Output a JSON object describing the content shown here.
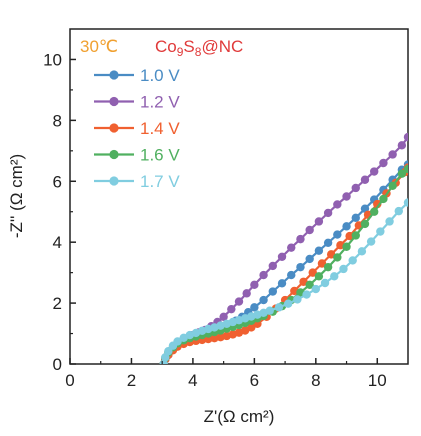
{
  "chart_data": {
    "type": "line",
    "xlabel": "Z'(Ω cm²)",
    "ylabel": "-Z'' (Ω cm²)",
    "xlim": [
      0,
      11
    ],
    "ylim": [
      0,
      11
    ],
    "x_ticks": [
      "0",
      "2",
      "4",
      "6",
      "8",
      "10"
    ],
    "y_ticks": [
      "0",
      "2",
      "4",
      "6",
      "8",
      "10"
    ],
    "grid": false,
    "legend_position": "top-left",
    "annotations": {
      "temperature": "30℃",
      "temperature_color": "#f0a030",
      "material": "Co9S8@NC",
      "material_color": "#e03a3a"
    },
    "series": [
      {
        "name": "1.0 V",
        "color": "#4a8cc4",
        "x": [
          3.05,
          3.1,
          3.2,
          3.3,
          3.45,
          3.6,
          3.8,
          4.0,
          4.2,
          4.4,
          4.6,
          4.8,
          5.0,
          5.2,
          5.4,
          5.6,
          5.8,
          6.0,
          6.3,
          6.6,
          6.9,
          7.2,
          7.5,
          7.8,
          8.1,
          8.4,
          8.7,
          9.0,
          9.3,
          9.6,
          9.9,
          10.2,
          10.5,
          10.8,
          11.0
        ],
        "y": [
          0.0,
          0.15,
          0.3,
          0.45,
          0.6,
          0.72,
          0.82,
          0.9,
          0.95,
          1.0,
          1.05,
          1.12,
          1.2,
          1.3,
          1.42,
          1.55,
          1.7,
          1.86,
          2.1,
          2.38,
          2.65,
          2.92,
          3.18,
          3.45,
          3.72,
          3.98,
          4.25,
          4.52,
          4.8,
          5.1,
          5.4,
          5.72,
          6.05,
          6.38,
          6.55
        ]
      },
      {
        "name": "1.2 V",
        "color": "#9060b0",
        "x": [
          3.05,
          3.1,
          3.2,
          3.3,
          3.45,
          3.6,
          3.8,
          4.0,
          4.2,
          4.4,
          4.6,
          4.8,
          5.0,
          5.25,
          5.5,
          5.75,
          6.0,
          6.3,
          6.6,
          6.9,
          7.2,
          7.5,
          7.8,
          8.1,
          8.4,
          8.7,
          9.0,
          9.3,
          9.6,
          9.9,
          10.2,
          10.5,
          10.8,
          11.0
        ],
        "y": [
          0.0,
          0.15,
          0.3,
          0.45,
          0.6,
          0.72,
          0.84,
          0.95,
          1.04,
          1.12,
          1.24,
          1.38,
          1.55,
          1.8,
          2.05,
          2.32,
          2.6,
          2.92,
          3.22,
          3.52,
          3.82,
          4.1,
          4.4,
          4.68,
          4.96,
          5.24,
          5.5,
          5.78,
          6.05,
          6.32,
          6.6,
          6.88,
          7.18,
          7.45
        ]
      },
      {
        "name": "1.4 V",
        "color": "#f06030",
        "x": [
          3.05,
          3.1,
          3.2,
          3.35,
          3.5,
          3.7,
          3.9,
          4.1,
          4.3,
          4.5,
          4.7,
          4.9,
          5.1,
          5.3,
          5.5,
          5.7,
          5.9,
          6.1,
          6.4,
          6.7,
          7.0,
          7.3,
          7.6,
          7.9,
          8.2,
          8.5,
          8.8,
          9.1,
          9.4,
          9.7,
          10.0,
          10.3,
          10.6,
          10.9,
          11.0
        ],
        "y": [
          0.0,
          0.15,
          0.3,
          0.45,
          0.57,
          0.66,
          0.72,
          0.76,
          0.79,
          0.82,
          0.85,
          0.88,
          0.92,
          0.97,
          1.03,
          1.1,
          1.2,
          1.32,
          1.55,
          1.82,
          2.1,
          2.4,
          2.7,
          3.0,
          3.3,
          3.6,
          3.9,
          4.2,
          4.55,
          4.9,
          5.25,
          5.6,
          5.95,
          6.3,
          6.45
        ]
      },
      {
        "name": "1.6 V",
        "color": "#50b060",
        "x": [
          3.05,
          3.1,
          3.2,
          3.35,
          3.5,
          3.7,
          3.9,
          4.1,
          4.3,
          4.5,
          4.7,
          4.9,
          5.1,
          5.3,
          5.5,
          5.7,
          5.9,
          6.1,
          6.3,
          6.6,
          6.9,
          7.2,
          7.5,
          7.8,
          8.1,
          8.4,
          8.7,
          9.0,
          9.3,
          9.6,
          9.9,
          10.2,
          10.5,
          10.8,
          11.0
        ],
        "y": [
          0.0,
          0.2,
          0.38,
          0.55,
          0.68,
          0.78,
          0.85,
          0.9,
          0.95,
          1.0,
          1.05,
          1.1,
          1.16,
          1.22,
          1.28,
          1.35,
          1.42,
          1.5,
          1.58,
          1.72,
          1.9,
          2.1,
          2.35,
          2.6,
          2.88,
          3.18,
          3.5,
          3.85,
          4.22,
          4.6,
          5.0,
          5.42,
          5.85,
          6.25,
          6.4
        ]
      },
      {
        "name": "1.7 V",
        "color": "#80cde0",
        "x": [
          3.05,
          3.1,
          3.2,
          3.35,
          3.5,
          3.7,
          3.9,
          4.1,
          4.3,
          4.5,
          4.7,
          4.9,
          5.1,
          5.3,
          5.5,
          5.7,
          5.9,
          6.1,
          6.3,
          6.5,
          6.8,
          7.1,
          7.4,
          7.7,
          8.0,
          8.3,
          8.6,
          8.9,
          9.2,
          9.5,
          9.8,
          10.1,
          10.4,
          10.7,
          11.0
        ],
        "y": [
          0.0,
          0.22,
          0.42,
          0.6,
          0.74,
          0.86,
          0.95,
          1.02,
          1.09,
          1.15,
          1.2,
          1.26,
          1.32,
          1.38,
          1.44,
          1.5,
          1.56,
          1.62,
          1.68,
          1.75,
          1.86,
          1.98,
          2.12,
          2.28,
          2.46,
          2.66,
          2.88,
          3.12,
          3.4,
          3.7,
          4.02,
          4.35,
          4.68,
          5.02,
          5.3
        ]
      }
    ]
  }
}
